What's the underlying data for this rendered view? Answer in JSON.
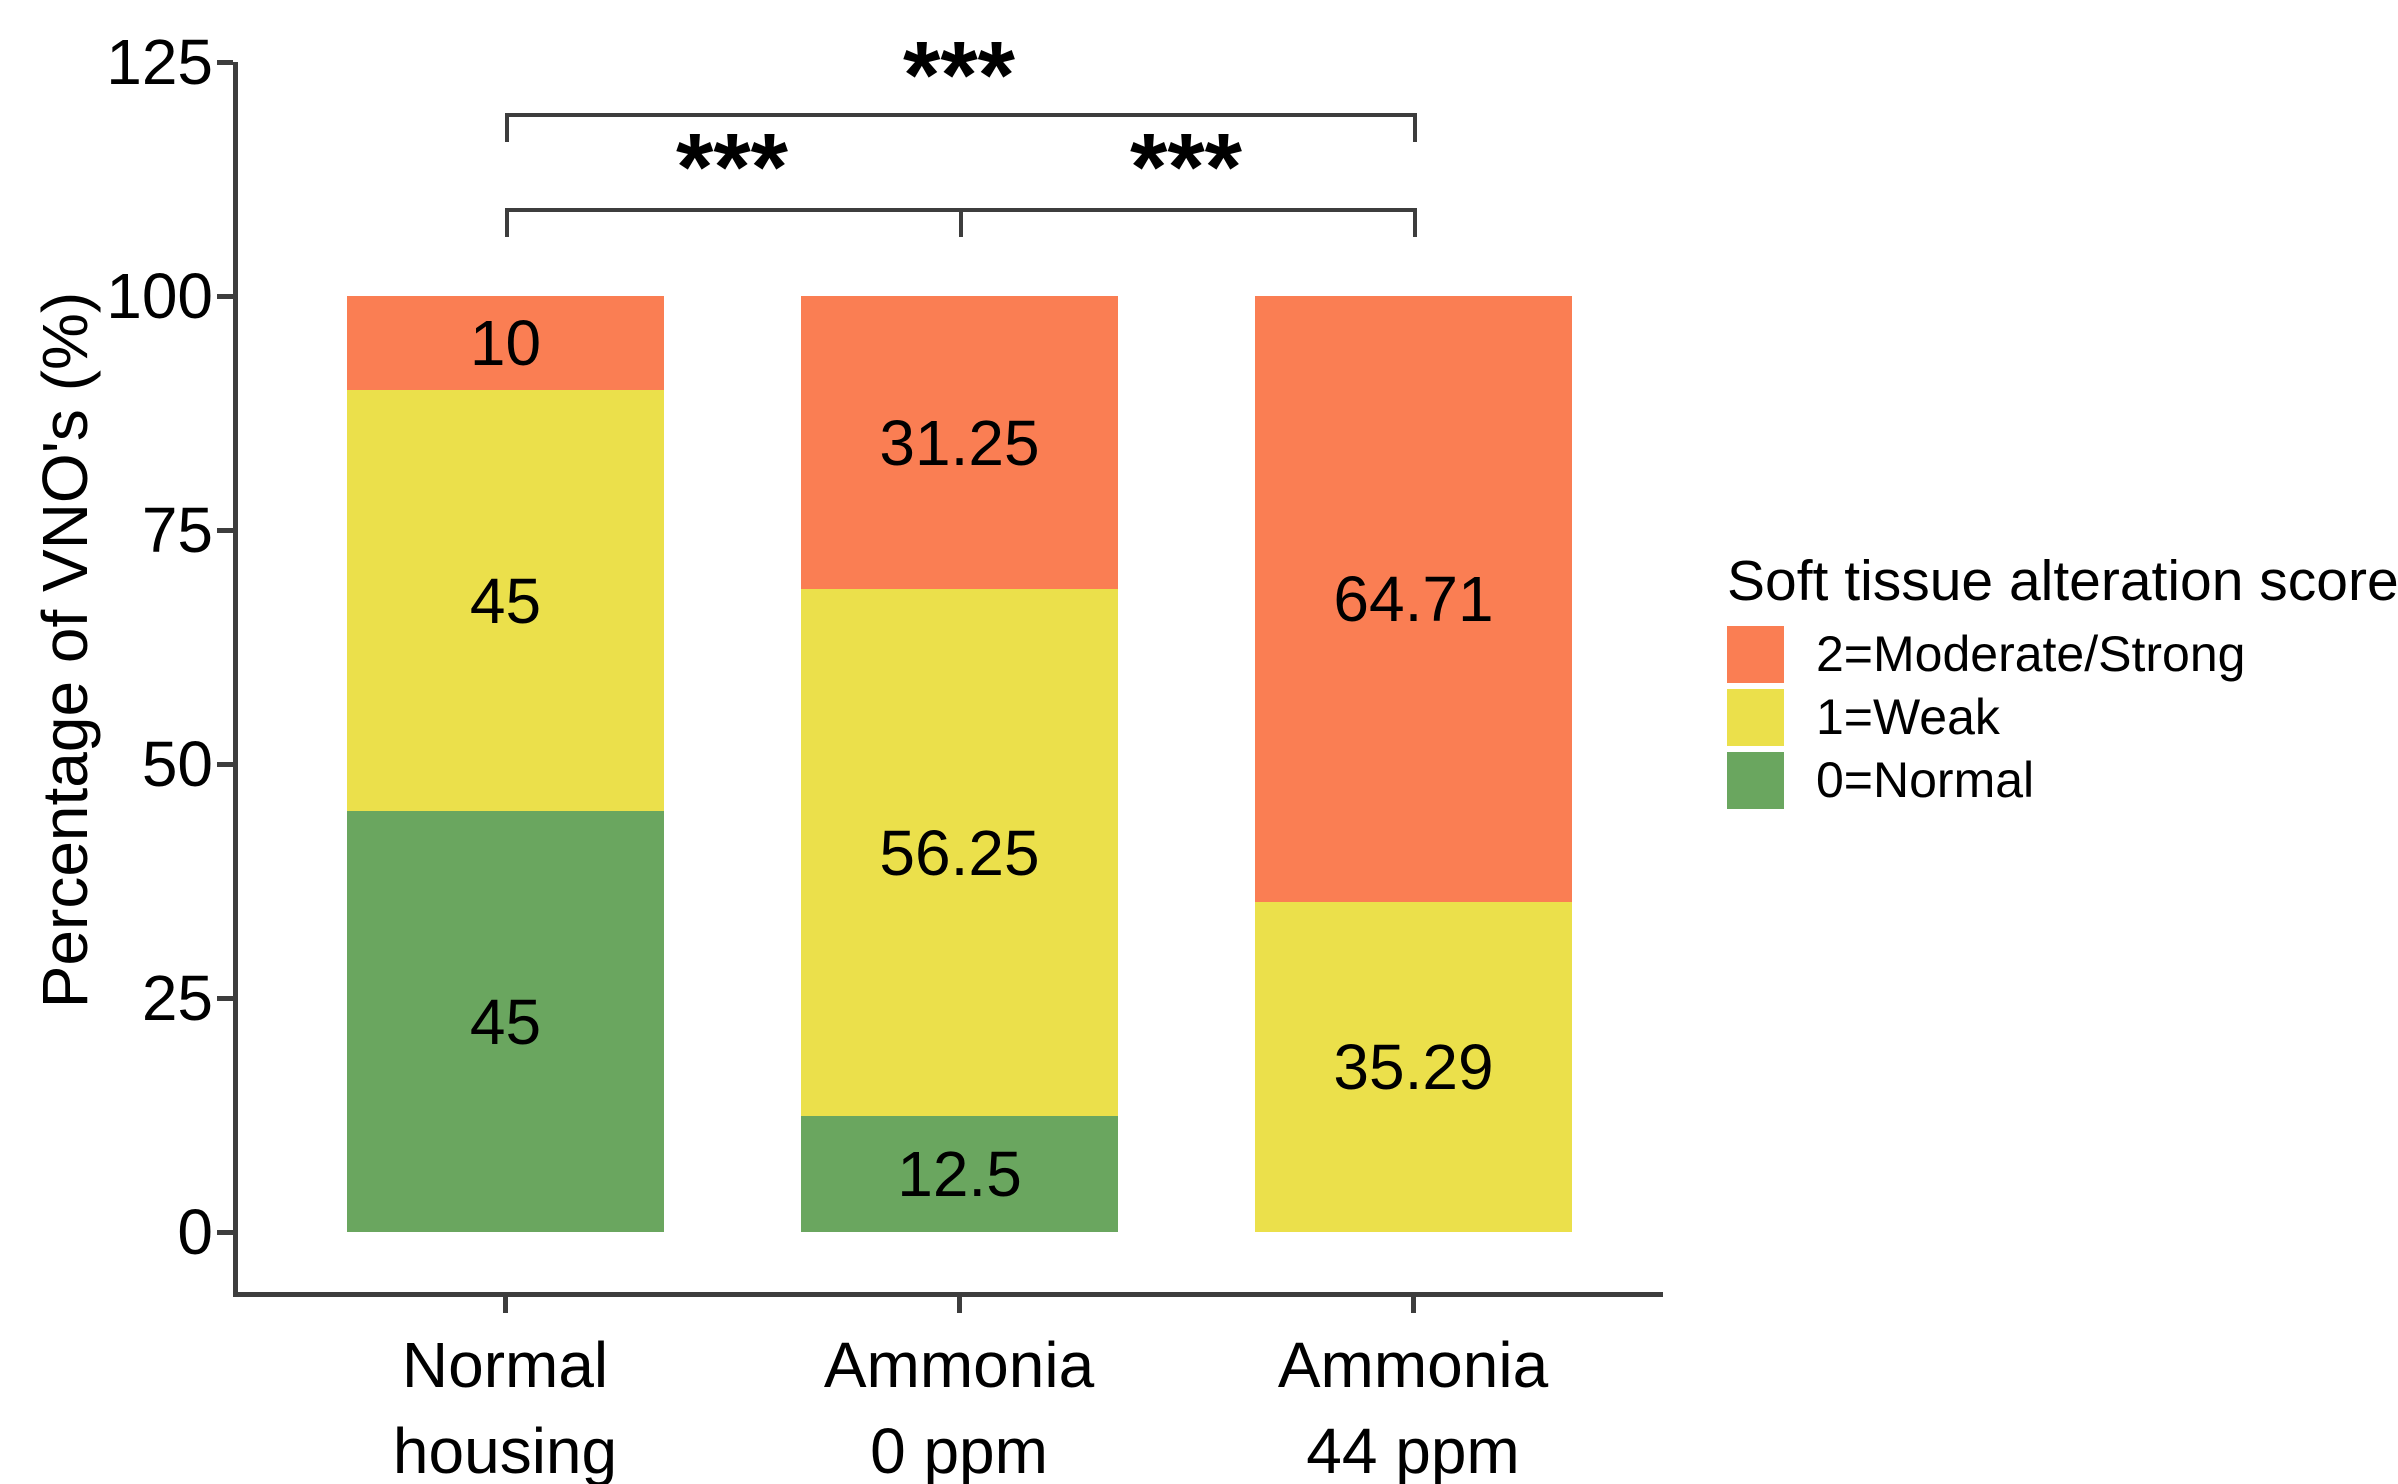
{
  "chart_data": {
    "type": "bar",
    "stacked": true,
    "title": "",
    "ylabel": "Percentage of VNO's (%)",
    "xlabel": "",
    "ylim": [
      0,
      125
    ],
    "yticks": [
      0,
      25,
      50,
      75,
      100,
      125
    ],
    "grid": false,
    "legend_position": "right",
    "axis_line_color": "#3D3D3D",
    "text_color": "#000000",
    "categories": [
      "Normal housing",
      "Ammonia 0 ppm",
      "Ammonia 44 ppm"
    ],
    "category_label_lines": [
      [
        "Normal",
        "housing"
      ],
      [
        "Ammonia",
        "0 ppm"
      ],
      [
        "Ammonia",
        "44 ppm"
      ]
    ],
    "series": [
      {
        "name": "0=Normal",
        "color": "#6AA65F",
        "values": [
          45,
          12.5,
          0
        ],
        "value_labels": [
          "45",
          "12.5",
          ""
        ]
      },
      {
        "name": "1=Weak",
        "color": "#EBE04B",
        "values": [
          45,
          56.25,
          35.29
        ],
        "value_labels": [
          "45",
          "56.25",
          "35.29"
        ]
      },
      {
        "name": "2=Moderate/Strong",
        "color": "#FA7E53",
        "values": [
          10,
          31.25,
          64.71
        ],
        "value_labels": [
          "10",
          "31.25",
          "64.71"
        ]
      }
    ],
    "legend": {
      "title": "Soft tissue alteration score",
      "items": [
        {
          "label": "2=Moderate/Strong",
          "color": "#FA7E53"
        },
        {
          "label": "1=Weak",
          "color": "#EBE04B"
        },
        {
          "label": "0=Normal",
          "color": "#6AA65F"
        }
      ]
    },
    "significance_brackets": [
      {
        "level": "upper",
        "between_bars": [
          0,
          2
        ],
        "ticks": [
          0,
          2
        ],
        "stars": [
          {
            "label": "***",
            "mid_of": [
              0,
              2
            ]
          }
        ]
      },
      {
        "level": "lower",
        "between_bars": [
          0,
          2
        ],
        "ticks": [
          0,
          1,
          2
        ],
        "stars": [
          {
            "label": "***",
            "mid_of": [
              0,
              1
            ]
          },
          {
            "label": "***",
            "mid_of": [
              1,
              2
            ]
          }
        ]
      }
    ]
  }
}
